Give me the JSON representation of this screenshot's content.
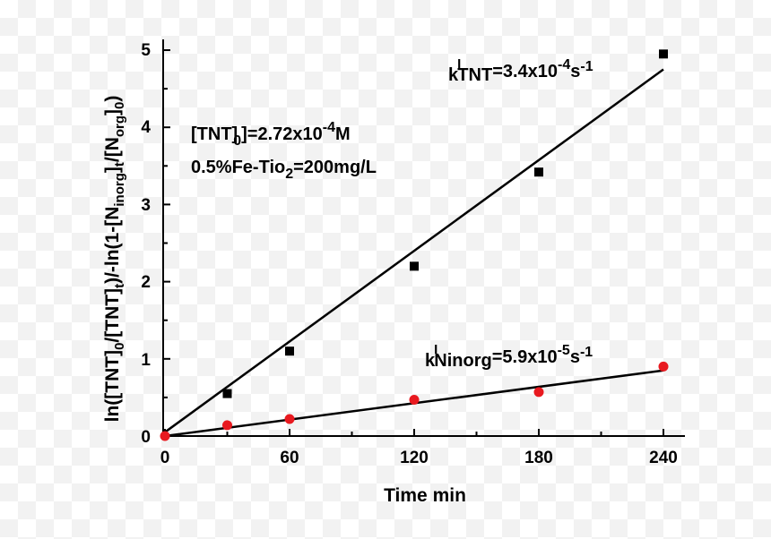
{
  "chart_data": {
    "type": "scatter",
    "xlabel": "Time min",
    "ylabel": "ln([TNT]0/[TNT]t)/-ln(1-[Ninorg]t/[Norg]0)",
    "xlim": [
      0,
      250
    ],
    "ylim": [
      0,
      5
    ],
    "x_ticks": [
      "0",
      "60",
      "120",
      "180",
      "240"
    ],
    "y_ticks": [
      "0",
      "1",
      "2",
      "3",
      "4",
      "5"
    ],
    "grid": false,
    "series": [
      {
        "marker": "square",
        "color": "#000000",
        "x": [
          30,
          60,
          120,
          180,
          240
        ],
        "y": [
          0.55,
          1.1,
          2.2,
          3.42,
          4.95
        ],
        "fit": [
          [
            0,
            0.05
          ],
          [
            240,
            4.75
          ]
        ]
      },
      {
        "marker": "circle",
        "color": "#e8191f",
        "x": [
          0,
          30,
          60,
          120,
          180,
          240
        ],
        "y": [
          0.0,
          0.14,
          0.22,
          0.47,
          0.57,
          0.9
        ],
        "fit": [
          [
            0,
            0.0
          ],
          [
            240,
            0.85
          ]
        ]
      }
    ],
    "annotations": {
      "k_tnt": {
        "pre": "k",
        "sup1": "I",
        "sub": "TNT",
        "mid": "=3.4x10",
        "sup2": "-4",
        "tail": "s",
        "sup3": "-1"
      },
      "k_ninorg": {
        "pre": "k",
        "sup1": "I",
        "sub": "Ninorg",
        "mid": "=5.9x10",
        "sup2": "-5",
        "tail": "s",
        "sup3": "-1"
      },
      "tnt0": {
        "pre": "[TNT]",
        "sub": "0",
        "mid": "]=2.72x10",
        "sup": "-4",
        "tail": "M"
      },
      "catalyst": {
        "pre": "0.5%Fe-Tio",
        "sub": "2",
        "tail": "=200mg/L"
      }
    },
    "ylabel_parts": {
      "p1": "ln([TNT]",
      "s1": "0",
      "p2": "/[TNT]",
      "s2": "t",
      "p3": ")/-ln(1-[N",
      "s3": "inorg",
      "p4": "]",
      "s4": "t",
      "p5": "/[N",
      "s5": "org",
      "p6": "]",
      "s6": "0",
      "p7": ")"
    }
  }
}
